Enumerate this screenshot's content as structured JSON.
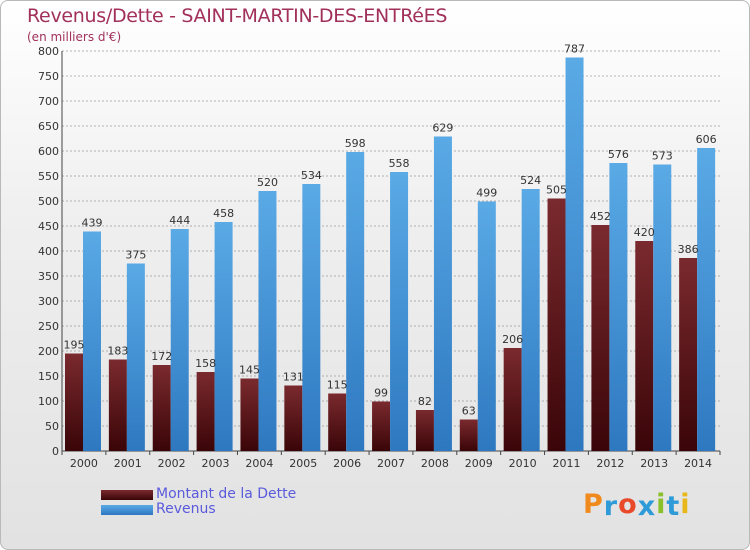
{
  "title": "Revenus/Dette - SAINT-MARTIN-DES-ENTRéES",
  "subtitle": "(en milliers d'€)",
  "logo": "Proxiti",
  "colors": {
    "debt_top": "#7a2a2e",
    "debt_bottom": "#3a0508",
    "revenue_top": "#5aaae6",
    "revenue_bottom": "#2e78c0",
    "grid": "#9a9a9a",
    "logo": [
      "#f08a1c",
      "#2e9ad8",
      "#e84a2a",
      "#2e9ad8",
      "#8ac02a",
      "#2e9ad8",
      "#e8b81a"
    ]
  },
  "chart_data": {
    "type": "bar",
    "categories": [
      "2000",
      "2001",
      "2002",
      "2003",
      "2004",
      "2005",
      "2006",
      "2007",
      "2008",
      "2009",
      "2010",
      "2011",
      "2012",
      "2013",
      "2014"
    ],
    "series": [
      {
        "name": "Montant de la Dette",
        "values": [
          195,
          183,
          172,
          158,
          145,
          131,
          115,
          99,
          82,
          63,
          206,
          505,
          452,
          420,
          386
        ]
      },
      {
        "name": "Revenus",
        "values": [
          439,
          375,
          444,
          458,
          520,
          534,
          598,
          558,
          629,
          499,
          524,
          787,
          576,
          573,
          606
        ]
      }
    ],
    "ylim": [
      0,
      800
    ],
    "yticks": [
      0,
      50,
      100,
      150,
      200,
      250,
      300,
      350,
      400,
      450,
      500,
      550,
      600,
      650,
      700,
      750,
      800
    ],
    "grid": true,
    "legend": "bottom-left"
  }
}
